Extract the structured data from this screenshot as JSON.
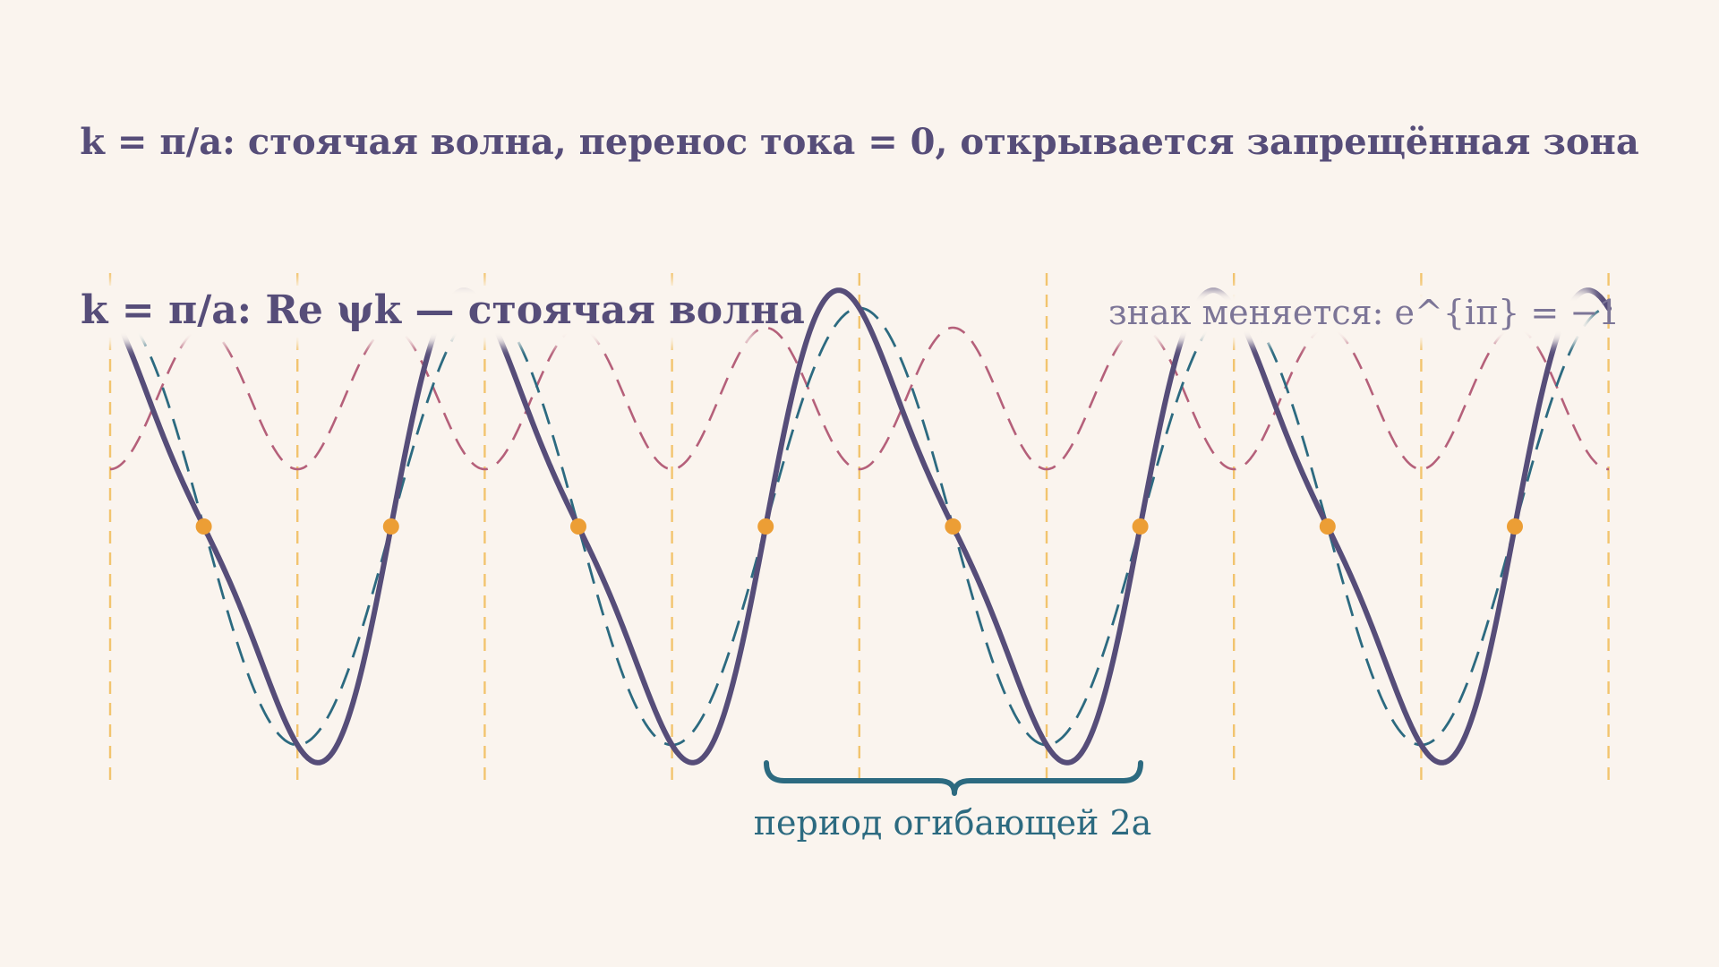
{
  "title": "k = π/a: стоячая волна, перенос тока = 0, открывается запрещённая зона",
  "wave_label": "k = π/a: Re ψk — стоячая волна",
  "sign_label": "знак меняется: e^{iπ} = −1",
  "period_label": "период огибающей 2a",
  "colors": {
    "background": "#faf4ee",
    "main_wave": "#564d79",
    "envelope_wave": "#2c6a80",
    "atomic_wave": "#b5607a",
    "lattice_lines": "#f2c46e",
    "node_points": "#ec9e35",
    "brace": "#2c6a80"
  }
}
